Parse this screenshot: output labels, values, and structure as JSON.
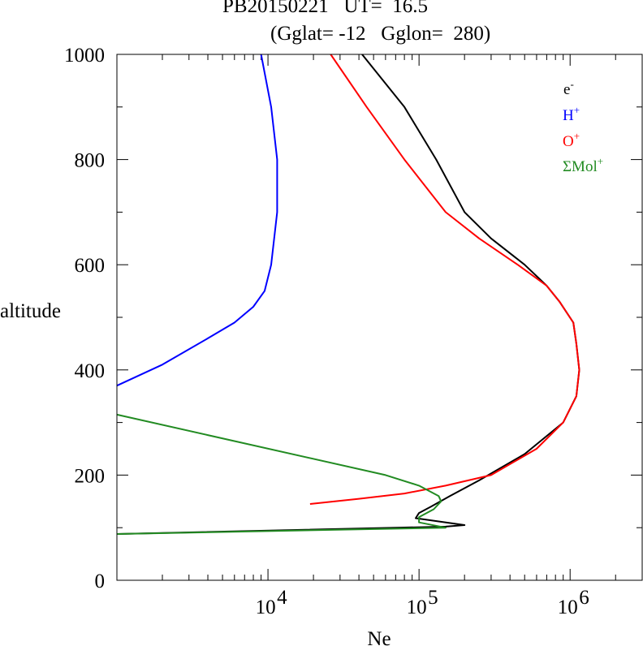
{
  "chart_data": {
    "type": "line",
    "title": "PB20150221   UT=  16.5",
    "subtitle": "(Gglat= -12   Gglon=  280)",
    "xlabel": "Ne",
    "ylabel": "altitude",
    "xscale": "log",
    "xlim": [
      1000,
      3000000
    ],
    "ylim": [
      0,
      1000
    ],
    "yticks": [
      "0",
      "200",
      "400",
      "600",
      "800",
      "1000"
    ],
    "xticks": [
      {
        "value": 10000,
        "base": "10",
        "exp": "4"
      },
      {
        "value": 100000,
        "base": "10",
        "exp": "5"
      },
      {
        "value": 1000000,
        "base": "10",
        "exp": "6"
      }
    ],
    "legend_position": "top-right",
    "series": [
      {
        "name": "e",
        "sup": "-",
        "color": "#000000",
        "points": [
          [
            1000,
            88
          ],
          [
            150000,
            102
          ],
          [
            200000,
            105
          ],
          [
            95000,
            118
          ],
          [
            100000,
            128
          ],
          [
            120000,
            140
          ],
          [
            160000,
            160
          ],
          [
            250000,
            190
          ],
          [
            500000,
            240
          ],
          [
            900000,
            300
          ],
          [
            1100000,
            350
          ],
          [
            1150000,
            400
          ],
          [
            1100000,
            450
          ],
          [
            1050000,
            490
          ],
          [
            850000,
            530
          ],
          [
            700000,
            560
          ],
          [
            500000,
            600
          ],
          [
            300000,
            650
          ],
          [
            200000,
            700
          ],
          [
            130000,
            800
          ],
          [
            80000,
            900
          ],
          [
            42000,
            1000
          ]
        ]
      },
      {
        "name": "H",
        "sup": "+",
        "color": "#0000ff",
        "points": [
          [
            1000,
            370
          ],
          [
            2000,
            410
          ],
          [
            4000,
            460
          ],
          [
            6000,
            490
          ],
          [
            8000,
            520
          ],
          [
            9500,
            550
          ],
          [
            10500,
            600
          ],
          [
            11500,
            700
          ],
          [
            11500,
            800
          ],
          [
            10500,
            900
          ],
          [
            9000,
            1000
          ]
        ]
      },
      {
        "name": "O",
        "sup": "+",
        "color": "#ff0000",
        "points": [
          [
            19000,
            145
          ],
          [
            40000,
            155
          ],
          [
            80000,
            165
          ],
          [
            150000,
            180
          ],
          [
            300000,
            200
          ],
          [
            600000,
            250
          ],
          [
            900000,
            300
          ],
          [
            1100000,
            350
          ],
          [
            1150000,
            400
          ],
          [
            1100000,
            450
          ],
          [
            1050000,
            490
          ],
          [
            850000,
            530
          ],
          [
            700000,
            560
          ],
          [
            450000,
            600
          ],
          [
            250000,
            650
          ],
          [
            150000,
            700
          ],
          [
            80000,
            800
          ],
          [
            45000,
            900
          ],
          [
            26000,
            1000
          ]
        ]
      },
      {
        "name": "ΣMol",
        "sup": "+",
        "color": "#228b22",
        "points": [
          [
            1000,
            315
          ],
          [
            60000,
            200
          ],
          [
            100000,
            180
          ],
          [
            135000,
            160
          ],
          [
            140000,
            150
          ],
          [
            125000,
            135
          ],
          [
            100000,
            120
          ],
          [
            100000,
            110
          ],
          [
            150000,
            100
          ],
          [
            1000,
            88
          ]
        ]
      }
    ]
  }
}
